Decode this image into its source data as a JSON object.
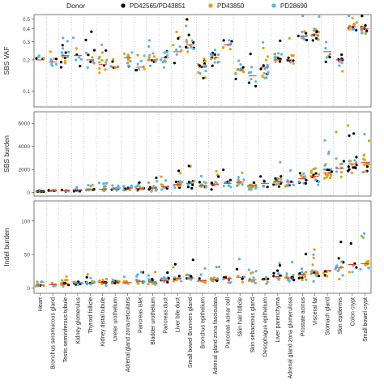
{
  "legend": {
    "title": "Donor",
    "entries": [
      {
        "label": "PD42565/PD43851",
        "color": "#000000"
      },
      {
        "label": "PD43850",
        "color": "#E69F00"
      },
      {
        "label": "PD28690",
        "color": "#56B4E9"
      }
    ]
  },
  "chart_data": {
    "type": "scatter",
    "layout": "three vertically stacked strip-plot panels sharing tissue categories on the x axis, median marked by a short red line per tissue",
    "categories": [
      "Heart",
      "Bronchus seromucous gland",
      "Testis seminiferous tubule",
      "Kidney glomerulus",
      "Thyroid follicle",
      "Kidney distal tubule",
      "Ureter urothelium",
      "Adrenal gland zona reticularis",
      "Pancreas islet",
      "Bladder urothelium",
      "Pancreas duct",
      "Liver bile duct",
      "Small bowel Brunners gland",
      "Bronchus epithelium",
      "Adrenal gland zona fasciculata",
      "Pancreas acinar cell",
      "Skin hair follicle",
      "Skin sebaceous gland",
      "Oesophagus epithelium",
      "Liver parenchyma",
      "Adrenal gland zona glomerulosa",
      "Prostate acinus",
      "Visceral fat",
      "Stomach gland",
      "Skin epidermis",
      "Colon crypt",
      "Small bowel crypt"
    ],
    "grid": "dotted vertical separators between categories",
    "panels": [
      {
        "ylabel": "SBS VAF",
        "yticks": [
          0.1,
          0.2,
          0.3,
          0.4,
          0.5
        ],
        "ylim": [
          0.07,
          0.55
        ],
        "scale": "log",
        "medians": [
          0.2,
          0.19,
          0.22,
          0.22,
          0.2,
          0.18,
          0.17,
          0.21,
          0.17,
          0.2,
          0.21,
          0.24,
          0.28,
          0.17,
          0.21,
          0.28,
          0.16,
          0.14,
          0.17,
          0.2,
          0.2,
          0.34,
          0.35,
          0.24,
          0.2,
          0.42,
          0.4
        ],
        "spreads": [
          0.06,
          0.05,
          0.12,
          0.07,
          0.08,
          0.05,
          0.05,
          0.06,
          0.04,
          0.06,
          0.07,
          0.08,
          0.12,
          0.06,
          0.06,
          0.1,
          0.05,
          0.04,
          0.06,
          0.07,
          0.06,
          0.1,
          0.1,
          0.1,
          0.06,
          0.08,
          0.07
        ]
      },
      {
        "ylabel": "SBS burden",
        "yticks": [
          0,
          2000,
          4000,
          6000
        ],
        "ylim": [
          -300,
          7000
        ],
        "scale": "linear",
        "medians": [
          100,
          150,
          150,
          200,
          250,
          280,
          300,
          400,
          350,
          400,
          500,
          700,
          800,
          600,
          700,
          800,
          900,
          600,
          800,
          1000,
          900,
          1200,
          1400,
          1700,
          2100,
          2500,
          2600
        ],
        "spreads": [
          60,
          100,
          150,
          150,
          200,
          250,
          250,
          350,
          300,
          400,
          450,
          600,
          700,
          500,
          600,
          600,
          700,
          500,
          900,
          900,
          900,
          1200,
          1300,
          1300,
          1800,
          1600,
          1500
        ]
      },
      {
        "ylabel": "Indel burden",
        "yticks": [
          0,
          50,
          100
        ],
        "ylim": [
          -8,
          130
        ],
        "scale": "linear",
        "medians": [
          4,
          5,
          6,
          7,
          7,
          8,
          9,
          8,
          10,
          9,
          11,
          14,
          15,
          11,
          12,
          14,
          16,
          12,
          12,
          17,
          15,
          20,
          22,
          26,
          30,
          35,
          36
        ],
        "spreads": [
          3,
          5,
          5,
          5,
          6,
          6,
          6,
          6,
          7,
          7,
          8,
          10,
          12,
          8,
          9,
          12,
          12,
          9,
          12,
          14,
          13,
          17,
          18,
          20,
          25,
          25,
          25
        ]
      }
    ]
  }
}
